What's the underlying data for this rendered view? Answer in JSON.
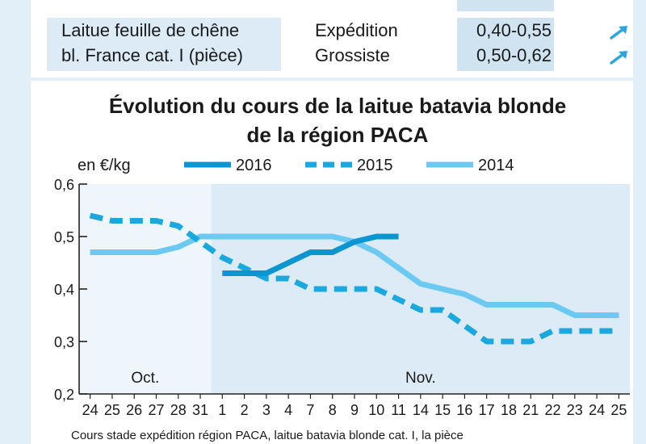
{
  "table": {
    "product_line1": "Laitue feuille de chêne",
    "product_line2": "bl. France cat. I (pièce)",
    "rows": [
      {
        "stage": "Expédition",
        "price": "0,40-0,55",
        "trend_icon": "arrow-up-right-icon"
      },
      {
        "stage": "Grossiste",
        "price": "0,50-0,62",
        "trend_icon": "arrow-up-right-icon"
      }
    ]
  },
  "colors": {
    "s2016": "#0b96d2",
    "s2015": "#1aa8de",
    "s2014": "#6ccaf2",
    "shade": "#dcebf6",
    "arrow": "#2aa6de"
  },
  "chart_data": {
    "type": "line",
    "title": "Évolution du cours de la laitue batavia blonde",
    "title_line2": "de la région PACA",
    "ylabel": "en €/kg",
    "ylim": [
      0.2,
      0.6
    ],
    "y_ticks": [
      "0,2",
      "0,3",
      "0,4",
      "0,5",
      "0,6"
    ],
    "y_tick_values": [
      0.2,
      0.3,
      0.4,
      0.5,
      0.6
    ],
    "categories": [
      "24",
      "25",
      "26",
      "27",
      "28",
      "31",
      "1",
      "2",
      "3",
      "4",
      "7",
      "8",
      "9",
      "10",
      "11",
      "14",
      "15",
      "16",
      "17",
      "18",
      "21",
      "22",
      "23",
      "24",
      "25"
    ],
    "months": [
      {
        "label": "Oct.",
        "from_index": 0,
        "to_index": 5
      },
      {
        "label": "Nov.",
        "from_index": 6,
        "to_index": 24
      }
    ],
    "shaded_from_index": 6,
    "grid": false,
    "legend_placement": "top",
    "series": [
      {
        "name": "2016",
        "style": "solid-thick",
        "color_key": "s2016",
        "values": [
          null,
          null,
          null,
          null,
          null,
          null,
          0.43,
          0.43,
          0.43,
          0.45,
          0.47,
          0.47,
          0.49,
          0.5,
          0.5,
          null,
          null,
          null,
          null,
          null,
          null,
          null,
          null,
          null,
          null
        ]
      },
      {
        "name": "2015",
        "style": "dashed",
        "color_key": "s2015",
        "values": [
          0.54,
          0.53,
          0.53,
          0.53,
          0.52,
          0.49,
          0.46,
          0.44,
          0.42,
          0.42,
          0.4,
          0.4,
          0.4,
          0.4,
          0.38,
          0.36,
          0.36,
          0.33,
          0.3,
          0.3,
          0.3,
          0.32,
          0.32,
          0.32,
          0.32
        ]
      },
      {
        "name": "2014",
        "style": "solid",
        "color_key": "s2014",
        "values": [
          0.47,
          0.47,
          0.47,
          0.47,
          0.48,
          0.5,
          0.5,
          0.5,
          0.5,
          0.5,
          0.5,
          0.5,
          0.49,
          0.47,
          0.44,
          0.41,
          0.4,
          0.39,
          0.37,
          0.37,
          0.37,
          0.37,
          0.35,
          0.35,
          0.35
        ]
      }
    ],
    "source": "Cours stade expédition région PACA, laitue batavia blonde cat. I, la pièce"
  }
}
